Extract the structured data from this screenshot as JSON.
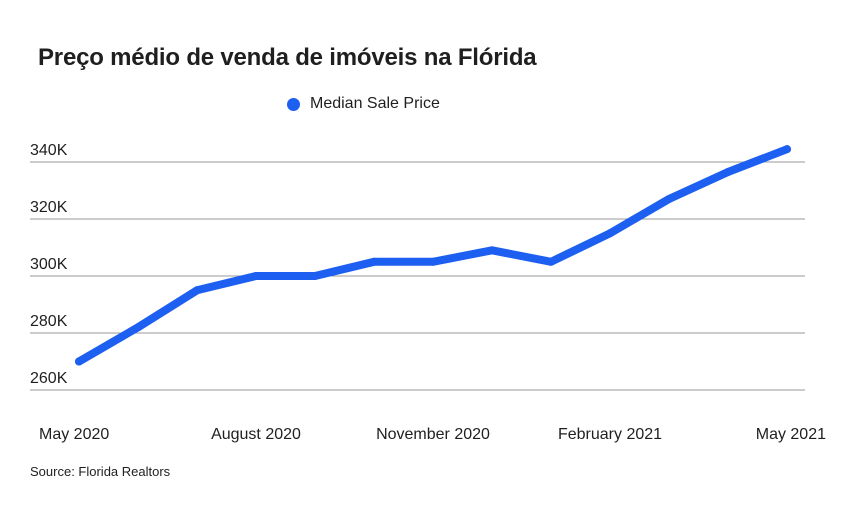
{
  "title": "Preço médio de venda de imóveis na Flórida",
  "source": "Source: Florida Realtors",
  "colors": {
    "line": "#1d5ff0",
    "grid": "#9a9a9a",
    "text": "#1f1f1f"
  },
  "chart_data": {
    "type": "line",
    "title": "Preço médio de venda de imóveis na Flórida",
    "xlabel": "",
    "ylabel": "",
    "legend_position": "top-center",
    "grid": true,
    "ylim": [
      260000,
      345000
    ],
    "y_ticks": [
      260000,
      280000,
      300000,
      320000,
      340000
    ],
    "y_tick_labels": [
      "260K",
      "280K",
      "300K",
      "320K",
      "340K"
    ],
    "x_tick_labels": [
      "May 2020",
      "August 2020",
      "November 2020",
      "February 2021",
      "May 2021"
    ],
    "x": [
      "May 2020",
      "Jun 2020",
      "Jul 2020",
      "Aug 2020",
      "Sep 2020",
      "Oct 2020",
      "Nov 2020",
      "Dec 2020",
      "Jan 2021",
      "Feb 2021",
      "Mar 2021",
      "Apr 2021",
      "May 2021"
    ],
    "series": [
      {
        "name": "Median Sale Price",
        "values": [
          270000,
          282000,
          295000,
          300000,
          300000,
          305000,
          305000,
          309000,
          305000,
          315000,
          327000,
          336500,
          344500
        ]
      }
    ]
  }
}
